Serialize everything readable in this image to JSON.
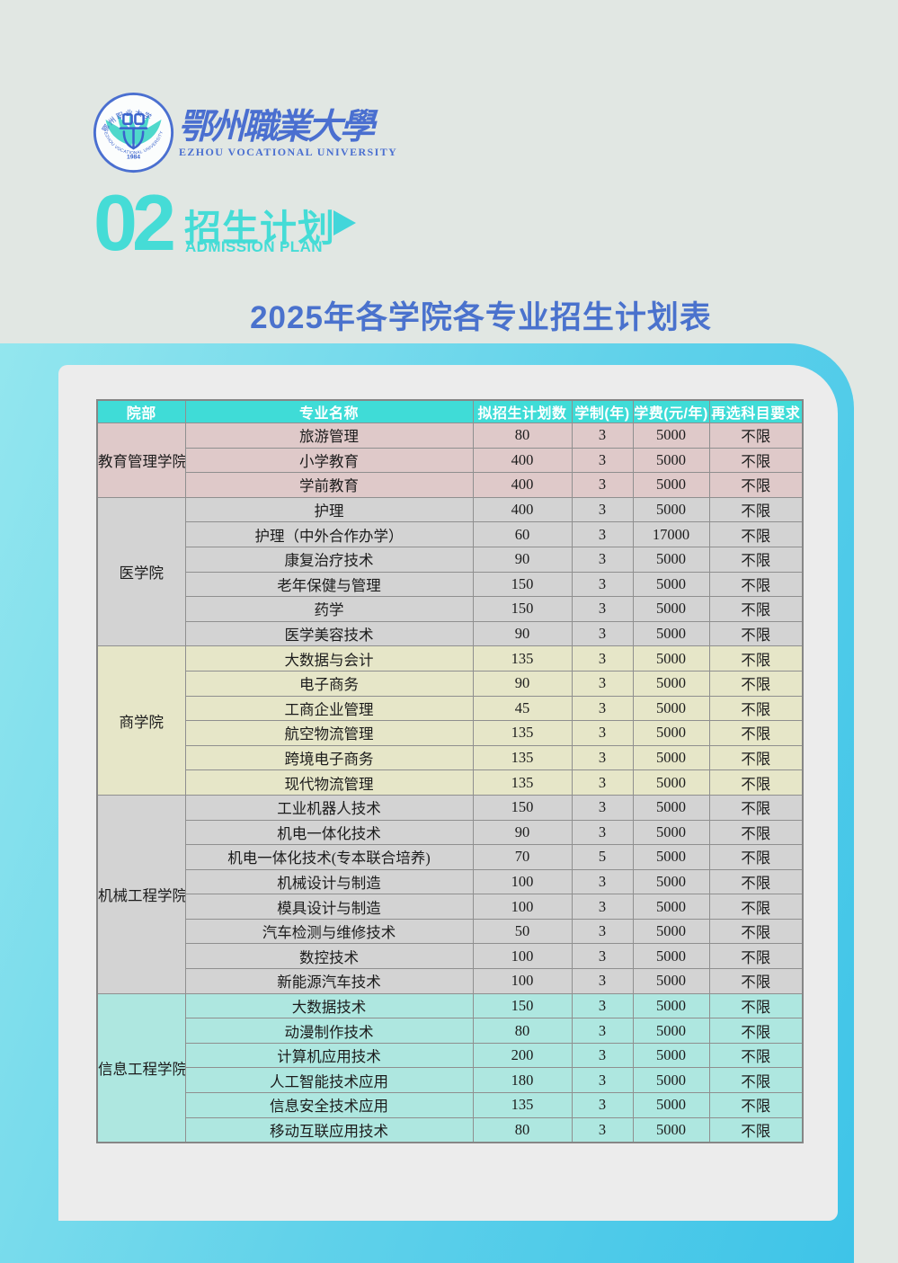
{
  "page": {
    "colors": {
      "background": "#e1e7e3",
      "band_gradient_start": "#93e6ee",
      "band_gradient_end": "#3ec4e8",
      "panel": "#ececec",
      "accent_teal": "#45dcd6",
      "title_blue": "#4a72cd",
      "logo_blue": "#4a6fd0"
    }
  },
  "logo": {
    "seal_zh": "鄂州职业大学",
    "seal_en": "EZHOU VOCATIONAL UNIVERSITY",
    "year": "1984",
    "wordmark_zh": "鄂州職業大學",
    "wordmark_en": "EZHOU VOCATIONAL UNIVERSITY"
  },
  "section": {
    "number": "02",
    "title_zh": "招生计划",
    "title_en": "ADMISSION PLAN"
  },
  "table_title": "2025年各学院各专业招生计划表",
  "table": {
    "header_bg": "#3fdcd7",
    "headers": [
      "院部",
      "专业名称",
      "拟招生计划数",
      "学制(年)",
      "学费(元/年)",
      "再选科目要求"
    ],
    "groups": [
      {
        "college": "教育管理学院",
        "color": "#dfc9c9",
        "rows": [
          [
            "旅游管理",
            "80",
            "3",
            "5000",
            "不限"
          ],
          [
            "小学教育",
            "400",
            "3",
            "5000",
            "不限"
          ],
          [
            "学前教育",
            "400",
            "3",
            "5000",
            "不限"
          ]
        ]
      },
      {
        "college": "医学院",
        "color": "#d3d3d3",
        "rows": [
          [
            "护理",
            "400",
            "3",
            "5000",
            "不限"
          ],
          [
            "护理（中外合作办学）",
            "60",
            "3",
            "17000",
            "不限"
          ],
          [
            "康复治疗技术",
            "90",
            "3",
            "5000",
            "不限"
          ],
          [
            "老年保健与管理",
            "150",
            "3",
            "5000",
            "不限"
          ],
          [
            "药学",
            "150",
            "3",
            "5000",
            "不限"
          ],
          [
            "医学美容技术",
            "90",
            "3",
            "5000",
            "不限"
          ]
        ]
      },
      {
        "college": "商学院",
        "color": "#e6e6c8",
        "rows": [
          [
            "大数据与会计",
            "135",
            "3",
            "5000",
            "不限"
          ],
          [
            "电子商务",
            "90",
            "3",
            "5000",
            "不限"
          ],
          [
            "工商企业管理",
            "45",
            "3",
            "5000",
            "不限"
          ],
          [
            "航空物流管理",
            "135",
            "3",
            "5000",
            "不限"
          ],
          [
            "跨境电子商务",
            "135",
            "3",
            "5000",
            "不限"
          ],
          [
            "现代物流管理",
            "135",
            "3",
            "5000",
            "不限"
          ]
        ]
      },
      {
        "college": "机械工程学院",
        "color": "#d3d3d3",
        "rows": [
          [
            "工业机器人技术",
            "150",
            "3",
            "5000",
            "不限"
          ],
          [
            "机电一体化技术",
            "90",
            "3",
            "5000",
            "不限"
          ],
          [
            "机电一体化技术(专本联合培养)",
            "70",
            "5",
            "5000",
            "不限"
          ],
          [
            "机械设计与制造",
            "100",
            "3",
            "5000",
            "不限"
          ],
          [
            "模具设计与制造",
            "100",
            "3",
            "5000",
            "不限"
          ],
          [
            "汽车检测与维修技术",
            "50",
            "3",
            "5000",
            "不限"
          ],
          [
            "数控技术",
            "100",
            "3",
            "5000",
            "不限"
          ],
          [
            "新能源汽车技术",
            "100",
            "3",
            "5000",
            "不限"
          ]
        ]
      },
      {
        "college": "信息工程学院",
        "color": "#aee7e0",
        "rows": [
          [
            "大数据技术",
            "150",
            "3",
            "5000",
            "不限"
          ],
          [
            "动漫制作技术",
            "80",
            "3",
            "5000",
            "不限"
          ],
          [
            "计算机应用技术",
            "200",
            "3",
            "5000",
            "不限"
          ],
          [
            "人工智能技术应用",
            "180",
            "3",
            "5000",
            "不限"
          ],
          [
            "信息安全技术应用",
            "135",
            "3",
            "5000",
            "不限"
          ],
          [
            "移动互联应用技术",
            "80",
            "3",
            "5000",
            "不限"
          ]
        ]
      }
    ]
  }
}
